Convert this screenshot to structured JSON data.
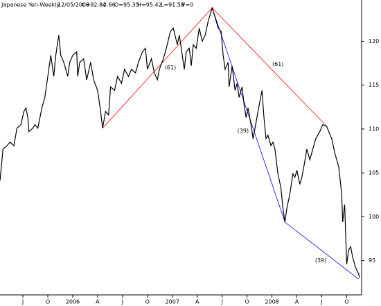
{
  "chart_data": {
    "type": "line",
    "title": "Japanese Yen-Weekly",
    "date": "12/05/2008",
    "quote": [
      "C=92.84",
      "-2.66",
      "O=95.35",
      "H=95.42",
      "L=91.58",
      "V=0"
    ],
    "quote_colors": [
      "#000000",
      "#ff0000",
      "#000000",
      "#000000",
      "#000000",
      "#000000"
    ],
    "xlim": [
      2005.27,
      2008.9
    ],
    "ylim": [
      91.1,
      124.7
    ],
    "yticks": [
      95,
      100,
      105,
      110,
      115,
      120
    ],
    "xticks": [
      {
        "value": 2005.5,
        "label": "J"
      },
      {
        "value": 2005.75,
        "label": "O"
      },
      2006,
      {
        "value": 2006.25,
        "label": "A"
      },
      {
        "value": 2006.5,
        "label": "J"
      },
      {
        "value": 2006.75,
        "label": "O"
      },
      2007,
      {
        "value": 2007.25,
        "label": "A"
      },
      {
        "value": 2007.5,
        "label": "J"
      },
      {
        "value": 2007.75,
        "label": "O"
      },
      2008,
      {
        "value": 2008.25,
        "label": "A"
      },
      {
        "value": 2008.5,
        "label": "J"
      },
      {
        "value": 2008.75,
        "label": "O"
      }
    ],
    "color": "#000000",
    "x": [
      2005.27,
      2005.3,
      2005.34,
      2005.37,
      2005.41,
      2005.44,
      2005.48,
      2005.51,
      2005.53,
      2005.55,
      2005.56,
      2005.6,
      2005.62,
      2005.65,
      2005.69,
      2005.72,
      2005.76,
      2005.78,
      2005.81,
      2005.83,
      2005.86,
      2005.88,
      2005.91,
      2005.95,
      2005.97,
      2006.0,
      2006.04,
      2006.05,
      2006.07,
      2006.11,
      2006.14,
      2006.18,
      2006.21,
      2006.25,
      2006.28,
      2006.3,
      2006.33,
      2006.36,
      2006.38,
      2006.42,
      2006.45,
      2006.49,
      2006.52,
      2006.56,
      2006.59,
      2006.63,
      2006.66,
      2006.7,
      2006.73,
      2006.75,
      2006.79,
      2006.82,
      2006.85,
      2006.87,
      2006.91,
      2006.94,
      2006.98,
      2007.01,
      2007.05,
      2007.07,
      2007.1,
      2007.12,
      2007.14,
      2007.17,
      2007.19,
      2007.21,
      2007.24,
      2007.27,
      2007.3,
      2007.33,
      2007.36,
      2007.4,
      2007.43,
      2007.46,
      2007.49,
      2007.51,
      2007.53,
      2007.56,
      2007.57,
      2007.6,
      2007.63,
      2007.65,
      2007.67,
      2007.7,
      2007.72,
      2007.74,
      2007.76,
      2007.79,
      2007.81,
      2007.83,
      2007.86,
      2007.88,
      2007.9,
      2007.92,
      2007.94,
      2007.96,
      2007.99,
      2008.01,
      2008.03,
      2008.06,
      2008.09,
      2008.11,
      2008.13,
      2008.15,
      2008.18,
      2008.21,
      2008.23,
      2008.25,
      2008.28,
      2008.3,
      2008.32,
      2008.35,
      2008.38,
      2008.41,
      2008.44,
      2008.48,
      2008.51,
      2008.55,
      2008.57,
      2008.6,
      2008.63,
      2008.65,
      2008.67,
      2008.7,
      2008.71,
      2008.73,
      2008.75,
      2008.77,
      2008.79,
      2008.81,
      2008.84,
      2008.87,
      2008.88
    ],
    "values": [
      104.1,
      107.7,
      108.1,
      108.5,
      108.1,
      110.1,
      110.5,
      112.0,
      112.4,
      111.3,
      109.7,
      110.1,
      110.5,
      110.1,
      112.4,
      113.6,
      116.8,
      118.4,
      116.0,
      118.4,
      120.7,
      118.4,
      117.6,
      116.0,
      117.6,
      118.4,
      118.8,
      116.0,
      117.6,
      118.0,
      115.6,
      117.6,
      115.6,
      114.4,
      112.0,
      110.1,
      112.0,
      111.6,
      114.8,
      114.4,
      116.0,
      115.2,
      116.8,
      116.0,
      116.8,
      116.4,
      117.6,
      118.8,
      119.2,
      116.8,
      118.0,
      116.4,
      115.6,
      116.8,
      118.0,
      119.2,
      121.1,
      121.5,
      119.6,
      120.7,
      118.4,
      116.8,
      118.8,
      119.2,
      117.2,
      119.6,
      119.2,
      121.5,
      120.0,
      120.7,
      122.3,
      123.8,
      122.7,
      121.5,
      121.1,
      118.4,
      116.8,
      117.6,
      114.8,
      117.2,
      114.4,
      115.2,
      113.6,
      114.8,
      112.8,
      111.3,
      112.4,
      110.5,
      108.9,
      110.1,
      112.0,
      113.2,
      114.4,
      111.3,
      108.9,
      109.3,
      108.1,
      108.5,
      107.7,
      104.9,
      103.3,
      101.0,
      99.4,
      101.0,
      102.6,
      104.9,
      104.5,
      105.3,
      103.7,
      104.5,
      105.7,
      107.7,
      106.5,
      107.7,
      108.9,
      109.7,
      110.5,
      110.3,
      109.7,
      108.9,
      107.3,
      106.5,
      105.7,
      102.6,
      99.4,
      101.4,
      94.6,
      96.2,
      96.6,
      95.4,
      94.2,
      93.5,
      93.1
    ],
    "trendlines": [
      {
        "color": "#ff0000",
        "x": [
          2006.3,
          2007.4,
          2008.55
        ],
        "y": [
          110.1,
          123.8,
          110.3
        ]
      },
      {
        "color": "#0000ff",
        "x": [
          2007.4,
          2008.13,
          2008.87
        ],
        "y": [
          123.8,
          99.4,
          92.9
        ]
      }
    ],
    "annotations": [
      {
        "text": "(61)",
        "x": 2006.98,
        "y": 117.0
      },
      {
        "text": "(61)",
        "x": 2008.06,
        "y": 117.4
      },
      {
        "text": "(39)",
        "x": 2007.71,
        "y": 109.8
      },
      {
        "text": "(39)",
        "x": 2008.49,
        "y": 95.0
      }
    ]
  }
}
